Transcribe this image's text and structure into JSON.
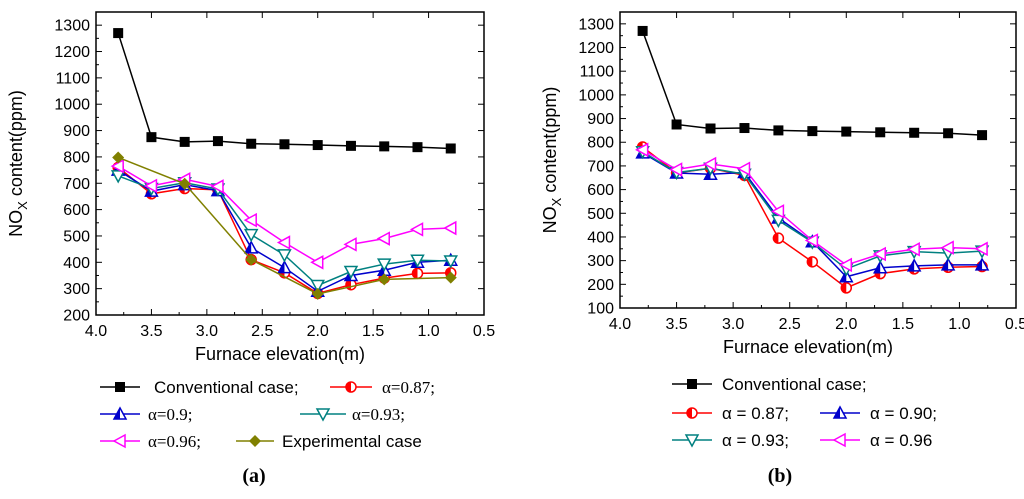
{
  "chart_data": [
    {
      "type": "line",
      "panel_label": "(a)",
      "xlabel": "Furnace elevation(m)",
      "ylabel": "NOx content(ppm)",
      "ylabel_main": "NO",
      "ylabel_sub": "X",
      "ylabel_rest": " content(ppm)",
      "xlim": [
        4.0,
        0.5
      ],
      "ylim": [
        200,
        1350
      ],
      "xticks": [
        "4.0",
        "3.5",
        "3.0",
        "2.5",
        "2.0",
        "1.5",
        "1.0",
        "0.5"
      ],
      "yticks": [
        "200",
        "300",
        "400",
        "500",
        "600",
        "700",
        "800",
        "900",
        "1000",
        "1100",
        "1200",
        "1300"
      ],
      "x": [
        3.8,
        3.5,
        3.2,
        2.9,
        2.6,
        2.3,
        2.0,
        1.7,
        1.4,
        1.1,
        0.8
      ],
      "series": [
        {
          "name": "Conventional case;",
          "color": "#000000",
          "marker": "square",
          "label_font": "sans",
          "values": [
            1270,
            875,
            857,
            860,
            850,
            848,
            845,
            842,
            840,
            837,
            832
          ]
        },
        {
          "name": "α=0.87;",
          "color": "#ff0000",
          "marker": "halfcircle",
          "label_font": "serif",
          "values": [
            760,
            660,
            680,
            675,
            410,
            360,
            282,
            315,
            340,
            358,
            360
          ]
        },
        {
          "name": "α=0.9;",
          "color": "#0000cc",
          "marker": "triangle-up",
          "label_font": "serif",
          "values": [
            750,
            670,
            695,
            672,
            455,
            380,
            290,
            350,
            370,
            400,
            408
          ]
        },
        {
          "name": "α=0.93;",
          "color": "#008080",
          "marker": "triangle-down",
          "label_font": "serif",
          "values": [
            728,
            680,
            702,
            678,
            505,
            428,
            312,
            365,
            393,
            408,
            405
          ]
        },
        {
          "name": "α=0.96;",
          "color": "#ff00ff",
          "marker": "triangle-left",
          "label_font": "serif",
          "values": [
            765,
            690,
            715,
            688,
            560,
            475,
            400,
            468,
            490,
            525,
            530
          ]
        },
        {
          "name": "Experimental case",
          "color": "#808000",
          "marker": "diamond",
          "label_font": "sans",
          "values": [
            798,
            null,
            698,
            null,
            410,
            null,
            280,
            null,
            335,
            null,
            342
          ]
        }
      ]
    },
    {
      "type": "line",
      "panel_label": "(b)",
      "xlabel": "Furnace elevation(m)",
      "ylabel": "NOx content(ppm)",
      "ylabel_main": "NO",
      "ylabel_sub": "X",
      "ylabel_rest": " content(ppm)",
      "xlim": [
        4.0,
        0.5
      ],
      "ylim": [
        100,
        1350
      ],
      "xticks": [
        "4.0",
        "3.5",
        "3.0",
        "2.5",
        "2.0",
        "1.5",
        "1.0",
        "0.5"
      ],
      "yticks": [
        "100",
        "200",
        "300",
        "400",
        "500",
        "600",
        "700",
        "800",
        "900",
        "1000",
        "1100",
        "1200",
        "1300"
      ],
      "x": [
        3.8,
        3.5,
        3.2,
        2.9,
        2.6,
        2.3,
        2.0,
        1.7,
        1.4,
        1.1,
        0.8
      ],
      "series": [
        {
          "name": "Conventional case;",
          "color": "#000000",
          "marker": "square",
          "label_font": "sans",
          "values": [
            1270,
            875,
            858,
            860,
            850,
            847,
            845,
            842,
            840,
            838,
            830
          ]
        },
        {
          "name": "α = 0.87;",
          "color": "#ff0000",
          "marker": "halfcircle",
          "label_font": "sans",
          "values": [
            780,
            670,
            690,
            660,
            395,
            295,
            185,
            245,
            265,
            272,
            275
          ]
        },
        {
          "name": "α = 0.90;",
          "color": "#0000cc",
          "marker": "triangle-up",
          "label_font": "sans",
          "values": [
            755,
            670,
            665,
            672,
            480,
            380,
            232,
            270,
            278,
            282,
            282
          ]
        },
        {
          "name": "α = 0.93;",
          "color": "#008080",
          "marker": "triangle-down",
          "label_font": "sans",
          "values": [
            760,
            672,
            690,
            665,
            470,
            378,
            265,
            320,
            338,
            332,
            340
          ]
        },
        {
          "name": "α = 0.96",
          "color": "#ff00ff",
          "marker": "triangle-left",
          "label_font": "sans",
          "values": [
            768,
            685,
            708,
            688,
            508,
            385,
            282,
            328,
            348,
            355,
            350
          ]
        }
      ]
    }
  ]
}
